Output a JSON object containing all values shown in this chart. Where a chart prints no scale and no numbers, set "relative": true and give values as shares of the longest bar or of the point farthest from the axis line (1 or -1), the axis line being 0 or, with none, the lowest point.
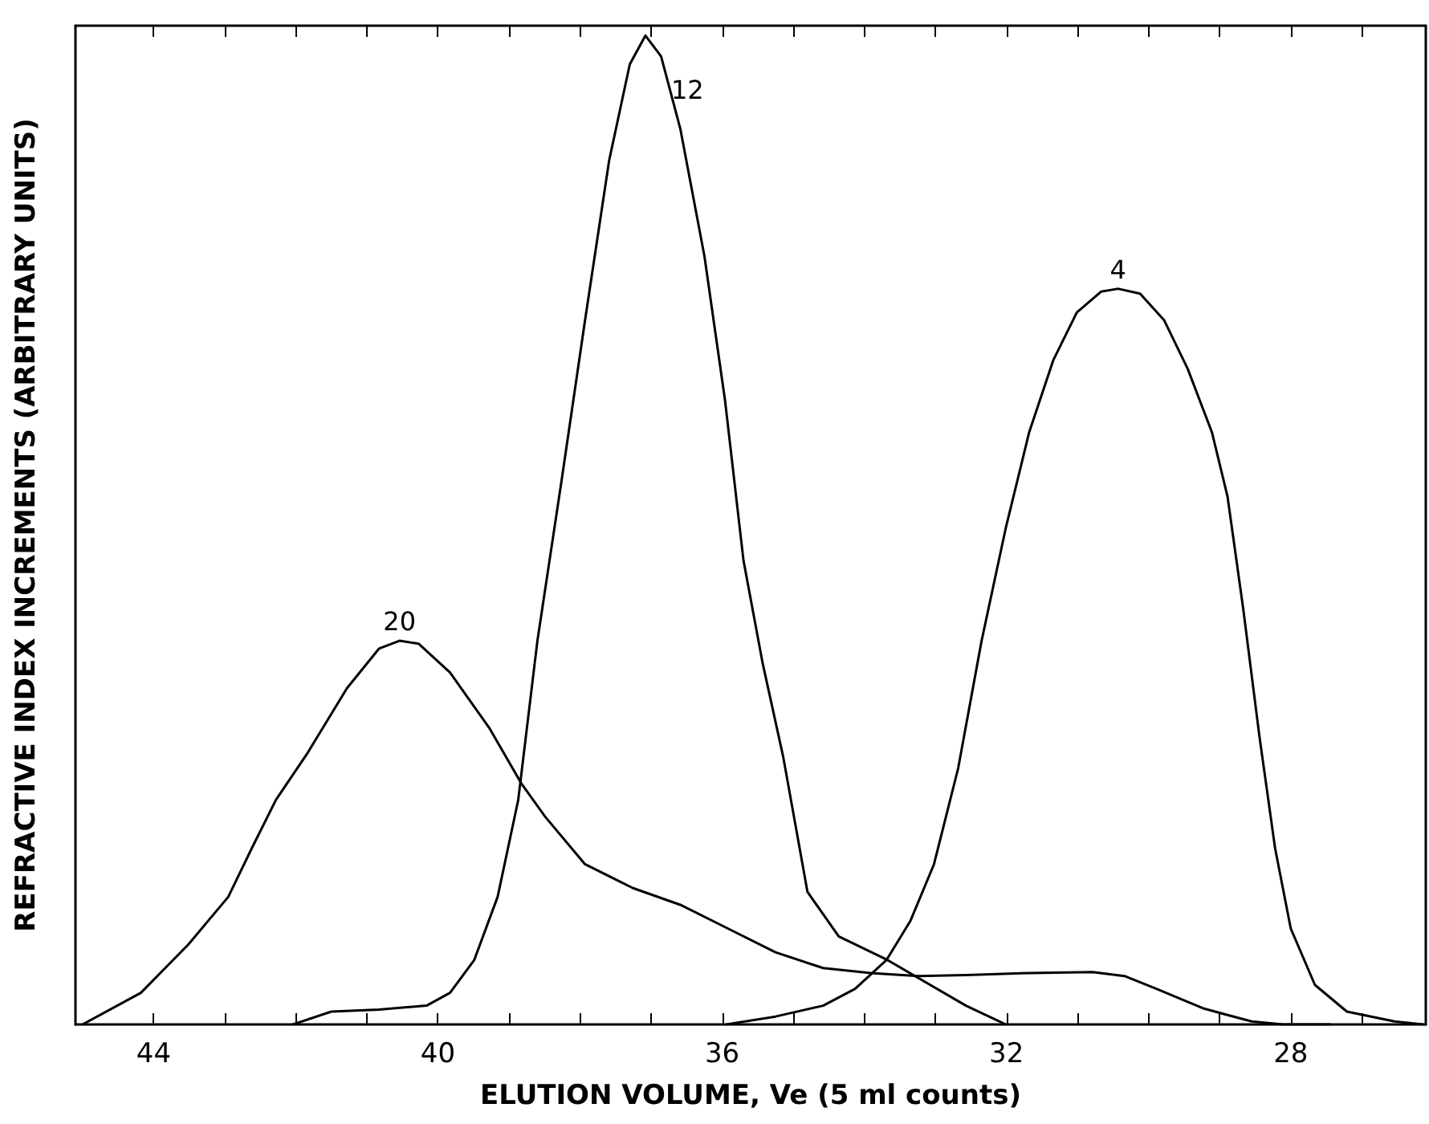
{
  "chart_data": {
    "type": "line",
    "relative": true,
    "xlabel": "ELUTION VOLUME, Ve (5 ml counts)",
    "ylabel": "REFRACTIVE INDEX INCREMENTS (ARBITRARY UNITS)",
    "xlim": [
      45.1,
      26.1
    ],
    "xticks": [
      44,
      {
        "value": 43,
        "label": null
      },
      {
        "value": 42,
        "label": null
      },
      {
        "value": 41,
        "label": null
      },
      40,
      {
        "value": 39,
        "label": null
      },
      {
        "value": 38,
        "label": null
      },
      {
        "value": 37,
        "label": null
      },
      36,
      {
        "value": 35,
        "label": null
      },
      {
        "value": 34,
        "label": null
      },
      {
        "value": 33,
        "label": null
      },
      32,
      {
        "value": 31,
        "label": null
      },
      {
        "value": 30,
        "label": null
      },
      {
        "value": 29,
        "label": null
      },
      28,
      {
        "value": 27,
        "label": null
      }
    ],
    "grid": false,
    "legend": false,
    "marker": "none",
    "line_style": "solid",
    "series": [
      {
        "name": "20",
        "color": "#000000",
        "x": [
          45.0,
          44.18,
          43.51,
          42.95,
          42.62,
          42.28,
          41.83,
          41.28,
          40.83,
          40.54,
          40.27,
          39.83,
          39.27,
          38.82,
          38.49,
          37.93,
          37.26,
          36.59,
          35.92,
          35.25,
          34.58,
          33.91,
          33.24,
          32.57,
          31.68,
          30.79,
          30.34,
          29.89,
          29.22,
          28.55,
          28.11,
          27.44
        ],
        "values": [
          0,
          0.032,
          0.081,
          0.129,
          0.178,
          0.227,
          0.275,
          0.34,
          0.38,
          0.388,
          0.385,
          0.356,
          0.299,
          0.243,
          0.21,
          0.162,
          0.138,
          0.121,
          0.097,
          0.073,
          0.057,
          0.052,
          0.049,
          0.05,
          0.052,
          0.053,
          0.049,
          0.036,
          0.016,
          0.003,
          0,
          0
        ]
      },
      {
        "name": "12",
        "color": "#000000",
        "x": [
          42.04,
          41.5,
          40.83,
          40.16,
          39.83,
          39.49,
          39.16,
          38.87,
          38.6,
          38.26,
          37.93,
          37.59,
          37.3,
          37.08,
          36.86,
          36.59,
          36.25,
          35.96,
          35.7,
          35.43,
          35.14,
          34.8,
          34.36,
          33.67,
          32.57,
          32.01
        ],
        "values": [
          0,
          0.013,
          0.015,
          0.019,
          0.032,
          0.065,
          0.129,
          0.227,
          0.388,
          0.55,
          0.712,
          0.874,
          0.971,
          1,
          0.979,
          0.906,
          0.777,
          0.631,
          0.469,
          0.365,
          0.27,
          0.134,
          0.089,
          0.065,
          0.019,
          0
        ]
      },
      {
        "name": "4",
        "color": "#000000",
        "x": [
          35.94,
          35.25,
          34.58,
          34.13,
          33.69,
          33.35,
          33.02,
          32.68,
          32.35,
          32.01,
          31.68,
          31.34,
          31.01,
          30.67,
          30.43,
          30.12,
          29.78,
          29.45,
          29.11,
          28.89,
          28.67,
          28.44,
          28.22,
          28.0,
          27.66,
          27.21,
          26.54,
          26.14
        ],
        "values": [
          0,
          0.008,
          0.019,
          0.036,
          0.065,
          0.105,
          0.162,
          0.259,
          0.388,
          0.502,
          0.599,
          0.672,
          0.72,
          0.741,
          0.744,
          0.739,
          0.712,
          0.663,
          0.599,
          0.534,
          0.421,
          0.291,
          0.178,
          0.097,
          0.04,
          0.013,
          0.003,
          0
        ]
      }
    ]
  }
}
